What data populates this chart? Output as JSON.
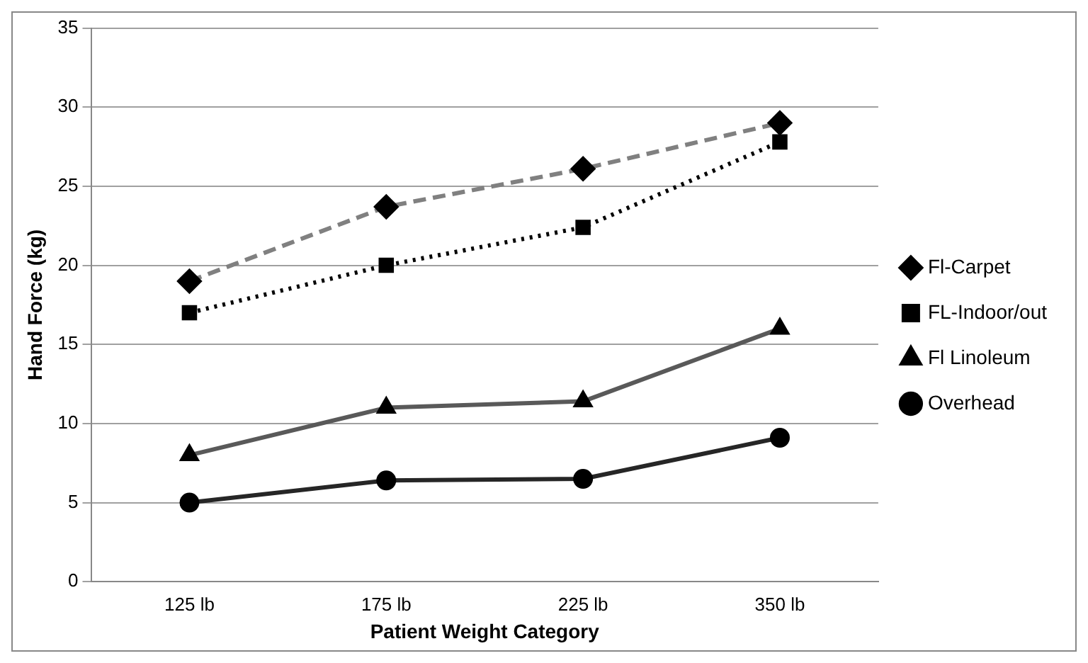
{
  "chart_data": {
    "type": "line",
    "xlabel": "Patient Weight Category",
    "ylabel": "Hand Force (kg)",
    "categories": [
      "125 lb",
      "175 lb",
      "225 lb",
      "350 lb"
    ],
    "series": [
      {
        "name": "Fl-Carpet",
        "color": "#808080",
        "marker": "diamond",
        "line_style": "dashed",
        "values": [
          19,
          23.7,
          26.1,
          29
        ]
      },
      {
        "name": "FL-Indoor/out",
        "color": "#000000",
        "marker": "square",
        "line_style": "dotted",
        "values": [
          17,
          20,
          22.4,
          27.8
        ]
      },
      {
        "name": "Fl Linoleum",
        "color": "#595959",
        "marker": "triangle",
        "line_style": "solid",
        "values": [
          8,
          11,
          11.4,
          16
        ]
      },
      {
        "name": "Overhead",
        "color": "#262626",
        "marker": "circle",
        "line_style": "solid",
        "values": [
          5,
          6.4,
          6.5,
          9.1
        ]
      }
    ],
    "ylim": [
      0,
      35
    ],
    "yticks": [
      0,
      5,
      10,
      15,
      20,
      25,
      30,
      35
    ],
    "grid": "y",
    "legend": "right"
  }
}
